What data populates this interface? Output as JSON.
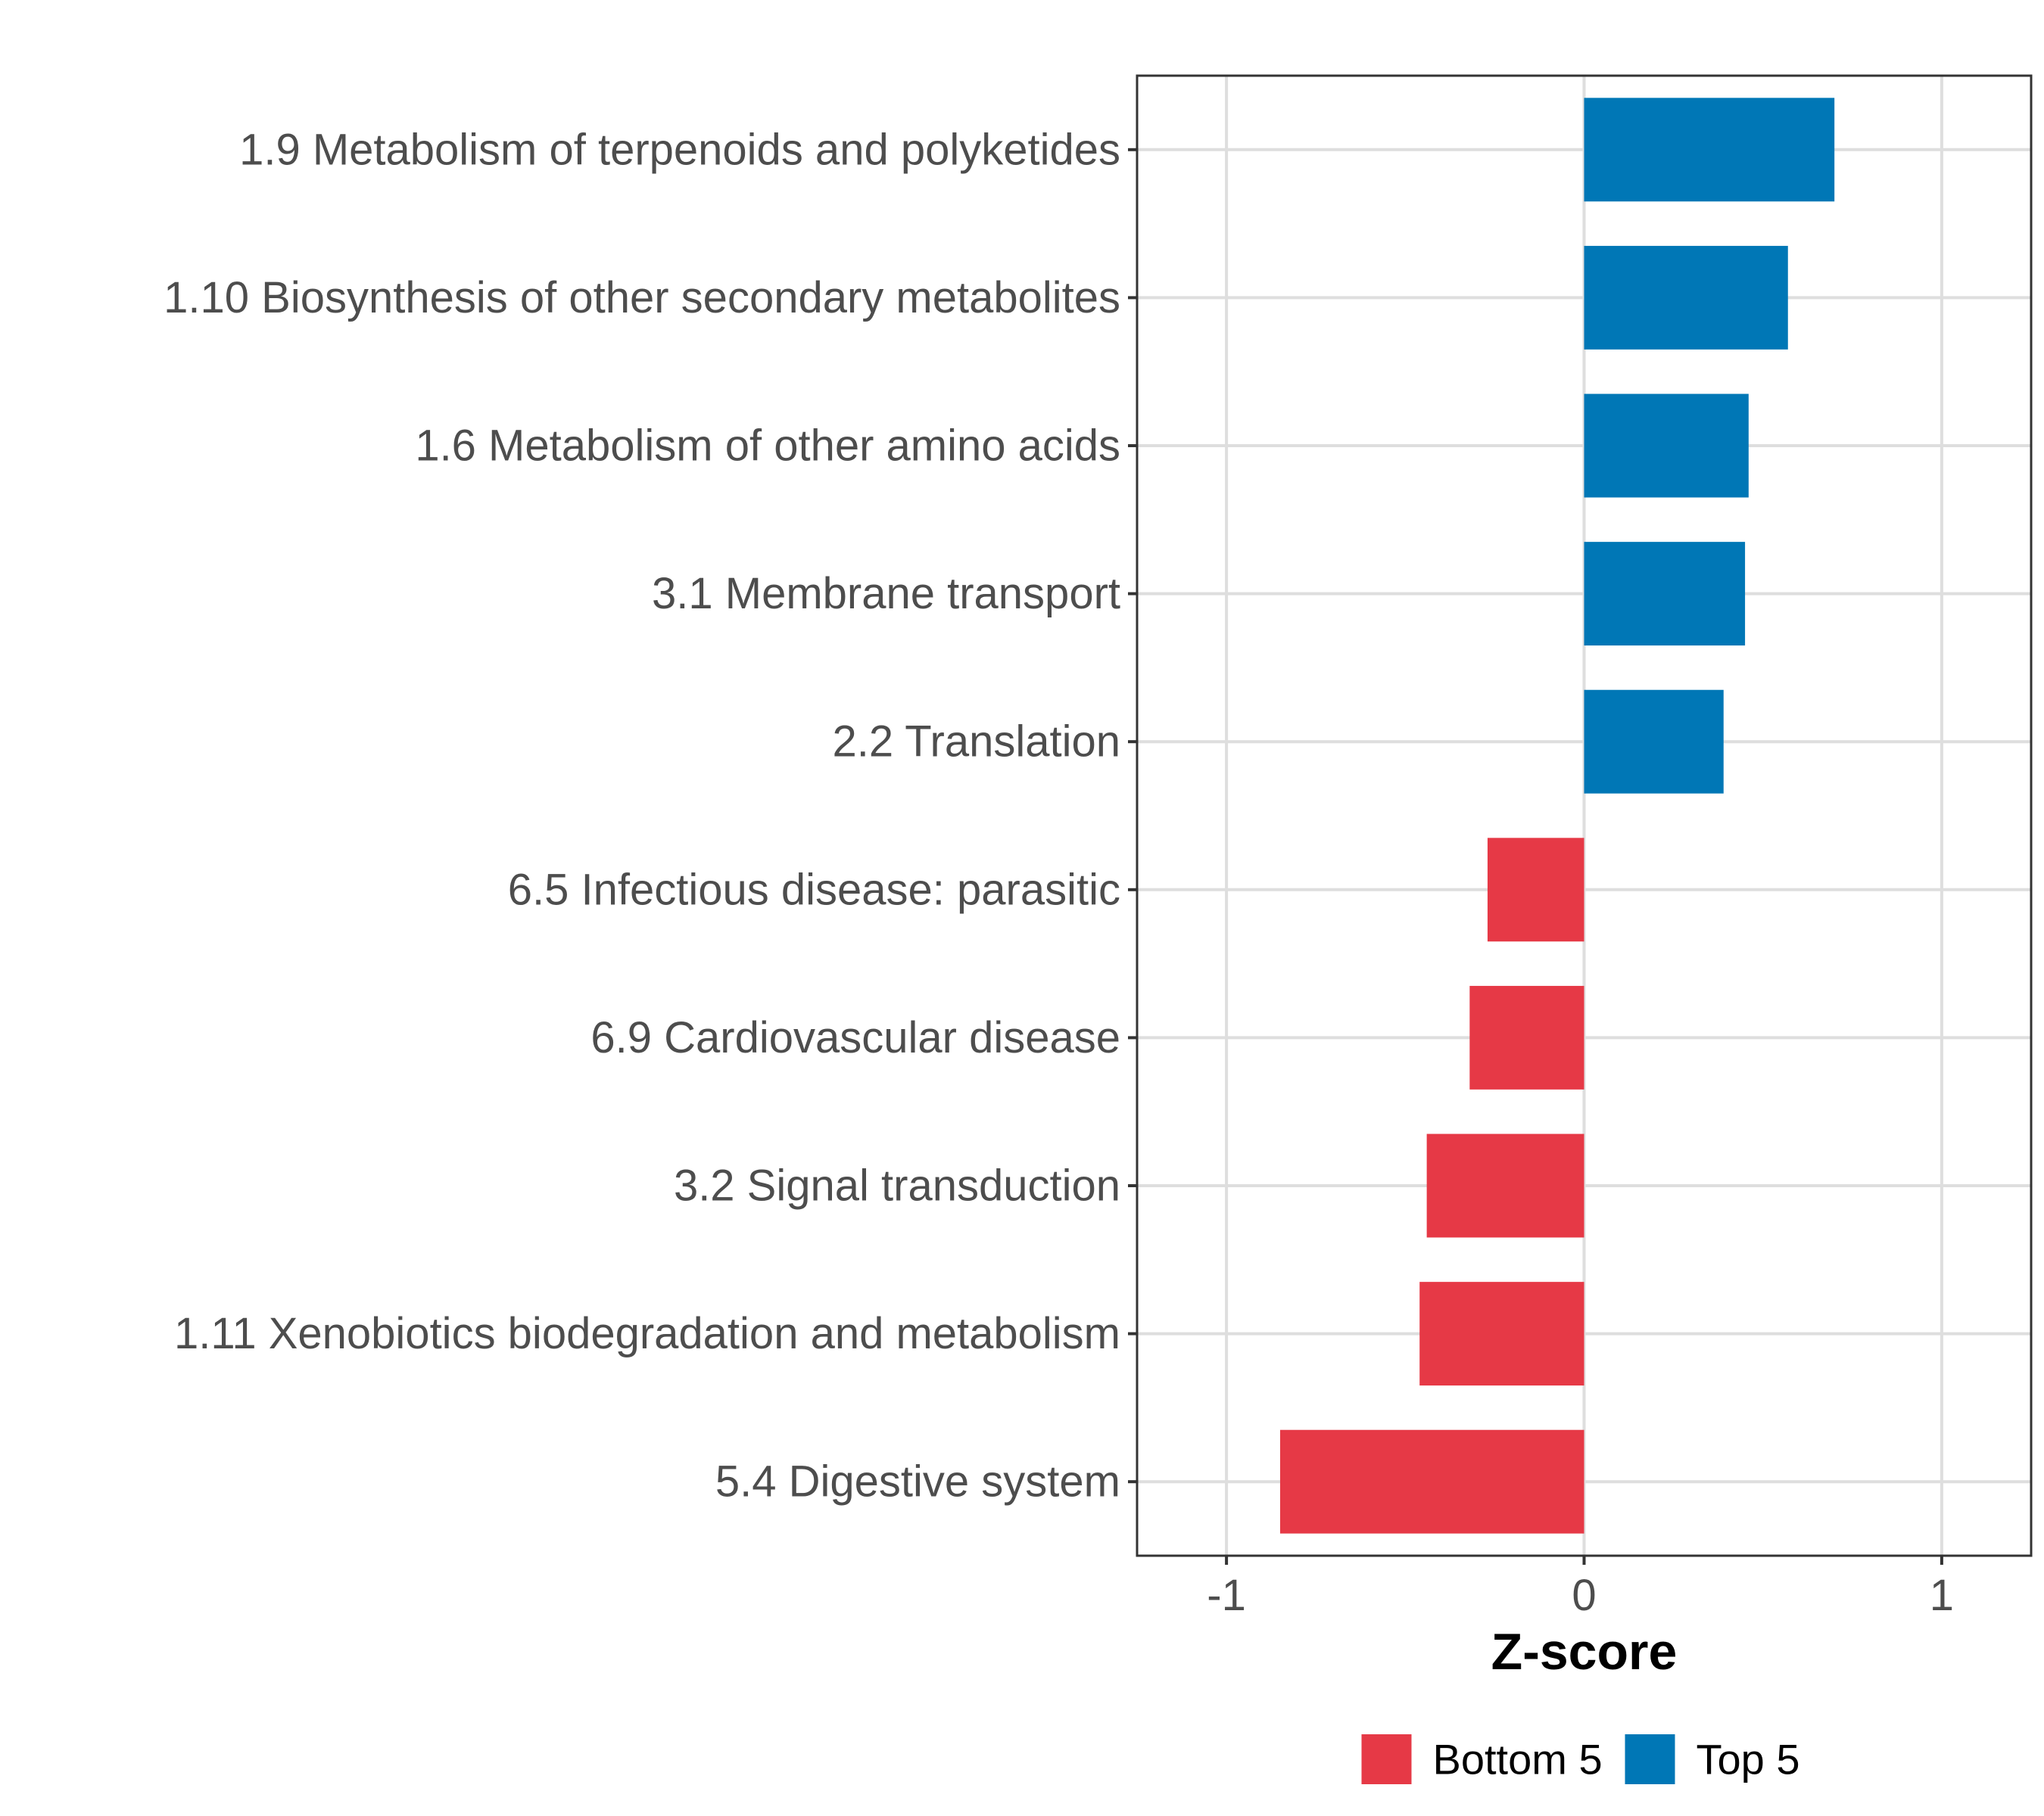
{
  "chart_data": {
    "type": "bar",
    "orientation": "horizontal",
    "title": "",
    "xlabel": "Z-score",
    "ylabel": "",
    "xlim": [
      -1.25,
      1.25
    ],
    "x_ticks": [
      -1,
      0,
      1
    ],
    "x_tick_labels": [
      "-1",
      "0",
      "1"
    ],
    "grid": true,
    "legend_position": "bottom",
    "categories": [
      "1.9 Metabolism of terpenoids and polyketides",
      "1.10 Biosynthesis of other secondary metabolites",
      "1.6 Metabolism of other amino acids",
      "3.1 Membrane transport",
      "2.2 Translation",
      "6.5 Infectious disease: parasitic",
      "6.9 Cardiovascular disease",
      "3.2 Signal transduction",
      "1.11 Xenobiotics biodegradation and metabolism",
      "5.4 Digestive system"
    ],
    "values": [
      0.7,
      0.57,
      0.46,
      0.45,
      0.39,
      -0.27,
      -0.32,
      -0.44,
      -0.46,
      -0.85
    ],
    "groups": [
      "Top 5",
      "Top 5",
      "Top 5",
      "Top 5",
      "Top 5",
      "Bottom 5",
      "Bottom 5",
      "Bottom 5",
      "Bottom 5",
      "Bottom 5"
    ],
    "legend": [
      {
        "name": "Bottom 5",
        "color": "#e63946"
      },
      {
        "name": "Top 5",
        "color": "#0077b6"
      }
    ]
  }
}
